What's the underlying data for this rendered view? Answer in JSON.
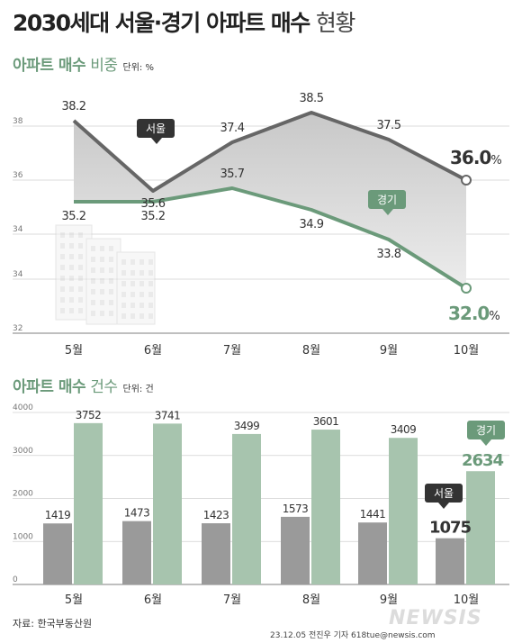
{
  "title": {
    "bold": "2030세대 서울·경기 아파트 매수",
    "light": "현황"
  },
  "line_section": {
    "main": "아파트 매수",
    "sub": "비중",
    "unit": "단위: %"
  },
  "bar_section": {
    "main": "아파트 매수",
    "sub": "건수",
    "unit": "단위: 건"
  },
  "source": "자료: 한국부동산원",
  "credit": "23.12.05 전진우 기자 618tue@newsis.com",
  "logo": "NEWSIS",
  "colors": {
    "seoul": "#666666",
    "gyeonggi": "#6b9a7a",
    "seoul_bar": "#9a9a9a",
    "gyeonggi_bar": "#a7c4ae",
    "band": "#d5d5d5"
  },
  "chart_data": [
    {
      "type": "line",
      "title": "아파트 매수 비중",
      "unit": "단위: %",
      "categories": [
        "5월",
        "6월",
        "7월",
        "8월",
        "9월",
        "10월"
      ],
      "yticks": [
        "38",
        "36",
        "34",
        "34",
        "32"
      ],
      "ylim": [
        32,
        39.5
      ],
      "series": [
        {
          "name": "서울",
          "values": [
            38.2,
            35.6,
            37.4,
            38.5,
            37.5,
            36.0
          ],
          "labels": [
            "38.2",
            "35.6",
            "37.4",
            "38.5",
            "37.5",
            "36.0"
          ],
          "last_unit": "%"
        },
        {
          "name": "경기",
          "values": [
            35.2,
            35.2,
            35.7,
            34.9,
            33.8,
            32.0
          ],
          "labels": [
            "35.2",
            "35.2",
            "35.7",
            "34.9",
            "33.8",
            "32.0"
          ],
          "last_unit": "%"
        }
      ]
    },
    {
      "type": "bar",
      "title": "아파트 매수 건수",
      "unit": "단위: 건",
      "categories": [
        "5월",
        "6월",
        "7월",
        "8월",
        "9월",
        "10월"
      ],
      "yticks": [
        "4000",
        "3000",
        "2000",
        "1000",
        "0"
      ],
      "ylim": [
        0,
        4000
      ],
      "series": [
        {
          "name": "서울",
          "values": [
            1419,
            1473,
            1423,
            1573,
            1441,
            1075
          ]
        },
        {
          "name": "경기",
          "values": [
            3752,
            3741,
            3499,
            3601,
            3409,
            2634
          ]
        }
      ]
    }
  ]
}
